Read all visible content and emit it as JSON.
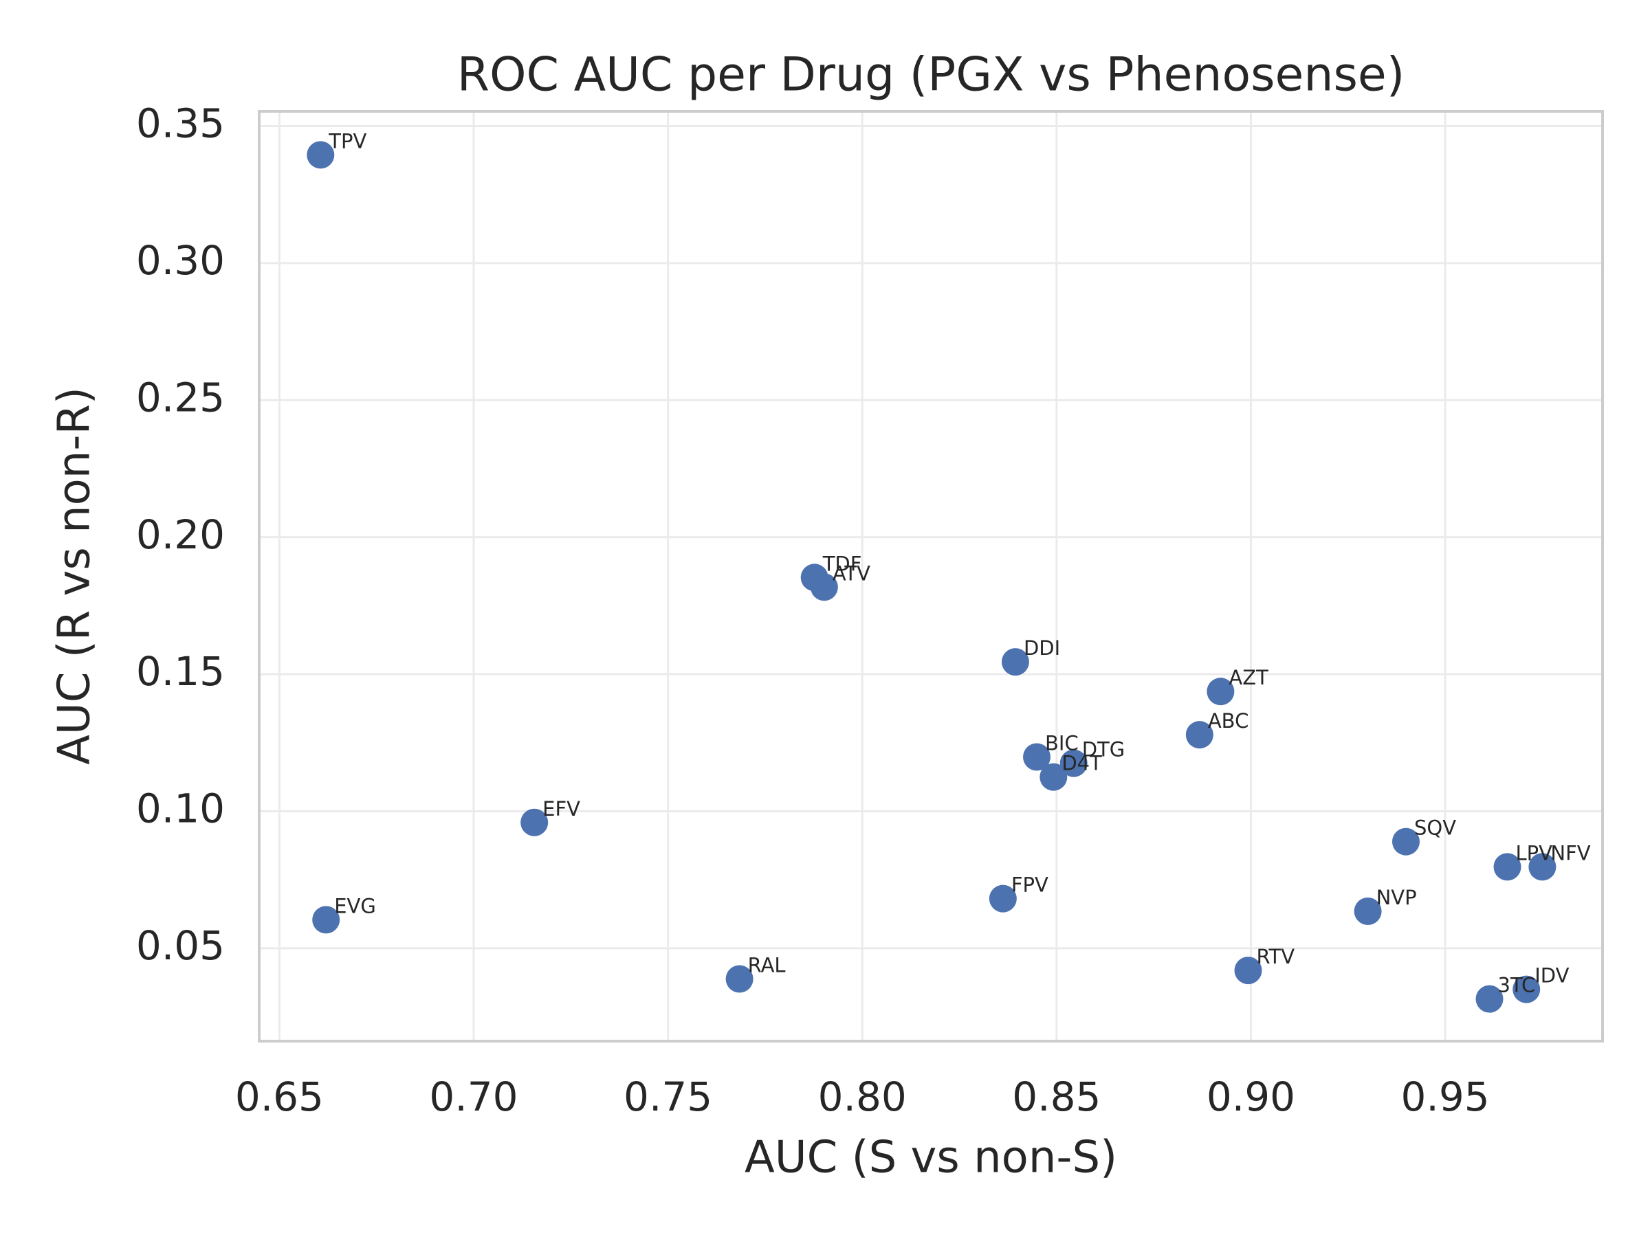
{
  "chart_data": {
    "type": "scatter",
    "title": "ROC AUC per Drug (PGX vs Phenosense)",
    "x_label": "AUC (S vs non-S)",
    "y_label": "AUC (R vs non-R)",
    "color": "#4c72b0",
    "point_labels": [
      "TPV",
      "EVG",
      "EFV",
      "RAL",
      "TDF",
      "ATV",
      "DDI",
      "FPV",
      "BIC",
      "DTG",
      "D4T",
      "ABC",
      "AZT",
      "RTV",
      "NVP",
      "SQV",
      "LPV",
      "NFV",
      "3TC",
      "IDV"
    ],
    "x": [
      0.6606,
      0.662,
      0.7156,
      0.7684,
      0.7877,
      0.7902,
      0.8394,
      0.8362,
      0.8449,
      0.8544,
      0.8492,
      0.8868,
      0.8922,
      0.8993,
      0.9301,
      0.9399,
      0.966,
      0.975,
      0.9614,
      0.9709
    ],
    "values": [
      0.3395,
      0.0604,
      0.0959,
      0.0388,
      0.1853,
      0.1818,
      0.1545,
      0.0681,
      0.1198,
      0.1175,
      0.1125,
      0.1279,
      0.1437,
      0.0419,
      0.0635,
      0.0889,
      0.0797,
      0.0797,
      0.0315,
      0.035
    ],
    "xlim": [
      0.6448,
      0.9905
    ],
    "ylim": [
      0.0161,
      0.3554
    ],
    "xticks": [
      0.65,
      {
        "value": 0.7,
        "label": "0.70"
      },
      0.75,
      {
        "value": 0.8,
        "label": "0.80"
      },
      0.85,
      {
        "value": 0.9,
        "label": "0.90"
      },
      0.95
    ],
    "yticks": [
      0.05,
      {
        "value": 0.1,
        "label": "0.10"
      },
      0.15,
      {
        "value": 0.2,
        "label": "0.20"
      },
      0.25,
      {
        "value": 0.3,
        "label": "0.30"
      },
      0.35
    ],
    "grid": true
  }
}
